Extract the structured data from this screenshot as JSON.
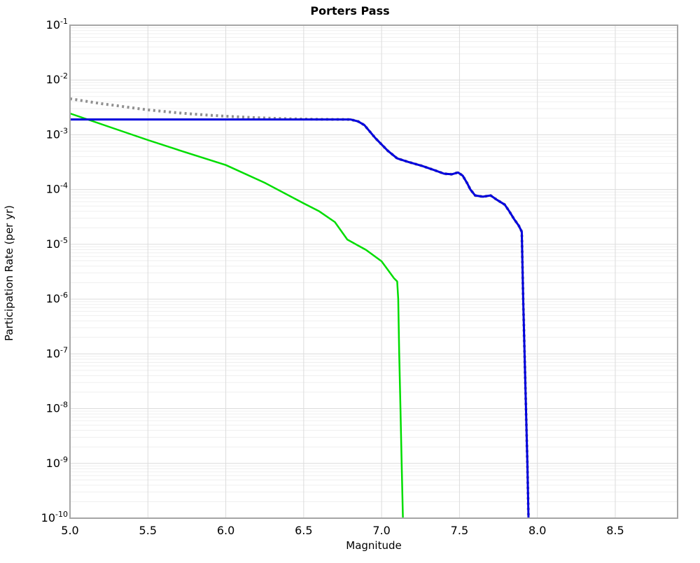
{
  "title": "Porters Pass",
  "axes": {
    "xlabel": "Magnitude",
    "ylabel": "Participation Rate (per yr)",
    "x_tick_labels": [
      "5.0",
      "5.5",
      "6.0",
      "6.5",
      "7.0",
      "7.5",
      "8.0",
      "8.5"
    ],
    "x_tick_values": [
      5.0,
      5.5,
      6.0,
      6.5,
      7.0,
      7.5,
      8.0,
      8.5
    ],
    "y_tick_exponents": [
      -1,
      -2,
      -3,
      -4,
      -5,
      -6,
      -7,
      -8,
      -9,
      -10
    ]
  },
  "colors": {
    "gray_series": "#909090",
    "green_series": "#00dd00",
    "blue_series": "#0000dd",
    "grid_major": "#dcdcdc",
    "grid_minor": "#efefef",
    "plot_border": "#a6a6a6"
  },
  "chart_data": {
    "type": "line",
    "title": "Porters Pass",
    "xlabel": "Magnitude",
    "ylabel": "Participation Rate (per yr)",
    "xlim": [
      5.0,
      8.9
    ],
    "ylim": [
      1e-10,
      0.1
    ],
    "y_scale": "log",
    "grid": true,
    "legend": "none",
    "series": [
      {
        "name": "gray-dotted",
        "color": "#909090",
        "style": "dotted",
        "width": 4,
        "points": [
          [
            5.0,
            0.00455
          ],
          [
            5.1,
            0.0041
          ],
          [
            5.2,
            0.0037
          ],
          [
            5.3,
            0.0034
          ],
          [
            5.4,
            0.0031
          ],
          [
            5.5,
            0.00285
          ],
          [
            5.6,
            0.00267
          ],
          [
            5.7,
            0.0025
          ],
          [
            5.8,
            0.00238
          ],
          [
            5.9,
            0.00227
          ],
          [
            6.0,
            0.00218
          ],
          [
            6.1,
            0.00211
          ],
          [
            6.2,
            0.00205
          ],
          [
            6.3,
            0.002
          ],
          [
            6.4,
            0.00196
          ],
          [
            6.5,
            0.00194
          ],
          [
            6.6,
            0.00192
          ],
          [
            6.7,
            0.00191
          ],
          [
            6.8,
            0.0019
          ],
          [
            6.85,
            0.00175
          ],
          [
            6.89,
            0.0015
          ],
          [
            6.96,
            0.00087
          ],
          [
            7.04,
            0.00051
          ],
          [
            7.1,
            0.00037
          ],
          [
            7.17,
            0.00032
          ],
          [
            7.26,
            0.00027
          ],
          [
            7.34,
            0.000225
          ],
          [
            7.4,
            0.000195
          ],
          [
            7.45,
            0.00019
          ],
          [
            7.49,
            0.000205
          ],
          [
            7.52,
            0.00018
          ],
          [
            7.55,
            0.00013
          ],
          [
            7.57,
            0.0001
          ],
          [
            7.6,
            7.8e-05
          ],
          [
            7.65,
            7.4e-05
          ],
          [
            7.7,
            7.8e-05
          ],
          [
            7.74,
            6.5e-05
          ],
          [
            7.79,
            5.3e-05
          ],
          [
            7.82,
            4e-05
          ],
          [
            7.85,
            2.9e-05
          ],
          [
            7.88,
            2.2e-05
          ],
          [
            7.9,
            1.7e-05
          ],
          [
            7.909,
            1e-06
          ],
          [
            7.918,
            1e-07
          ],
          [
            7.927,
            1e-08
          ],
          [
            7.936,
            1e-09
          ],
          [
            7.943,
            1e-10
          ]
        ]
      },
      {
        "name": "green-solid",
        "color": "#00dd00",
        "style": "solid",
        "width": 2.5,
        "points": [
          [
            5.0,
            0.00245
          ],
          [
            5.25,
            0.0014
          ],
          [
            5.5,
            0.0008
          ],
          [
            5.75,
            0.00047
          ],
          [
            6.0,
            0.00028
          ],
          [
            6.25,
            0.000133
          ],
          [
            6.5,
            5.6e-05
          ],
          [
            6.6,
            4e-05
          ],
          [
            6.7,
            2.55e-05
          ],
          [
            6.78,
            1.22e-05
          ],
          [
            6.9,
            7.9e-06
          ],
          [
            7.0,
            4.9e-06
          ],
          [
            7.08,
            2.4e-06
          ],
          [
            7.1,
            2.1e-06
          ],
          [
            7.107,
            1e-06
          ],
          [
            7.113,
            1e-07
          ],
          [
            7.121,
            1e-08
          ],
          [
            7.129,
            1e-09
          ],
          [
            7.137,
            1e-10
          ]
        ]
      },
      {
        "name": "blue-solid",
        "color": "#0000dd",
        "style": "solid",
        "width": 3,
        "points": [
          [
            5.0,
            0.0019
          ],
          [
            6.0,
            0.0019
          ],
          [
            6.5,
            0.0019
          ],
          [
            6.8,
            0.0019
          ],
          [
            6.85,
            0.00175
          ],
          [
            6.89,
            0.0015
          ],
          [
            6.96,
            0.00087
          ],
          [
            7.04,
            0.00051
          ],
          [
            7.1,
            0.00037
          ],
          [
            7.17,
            0.00032
          ],
          [
            7.26,
            0.00027
          ],
          [
            7.34,
            0.000225
          ],
          [
            7.4,
            0.000195
          ],
          [
            7.45,
            0.00019
          ],
          [
            7.49,
            0.000205
          ],
          [
            7.52,
            0.00018
          ],
          [
            7.55,
            0.00013
          ],
          [
            7.57,
            0.0001
          ],
          [
            7.6,
            7.8e-05
          ],
          [
            7.65,
            7.4e-05
          ],
          [
            7.7,
            7.8e-05
          ],
          [
            7.74,
            6.5e-05
          ],
          [
            7.79,
            5.3e-05
          ],
          [
            7.82,
            4e-05
          ],
          [
            7.85,
            2.9e-05
          ],
          [
            7.88,
            2.2e-05
          ],
          [
            7.9,
            1.7e-05
          ],
          [
            7.909,
            1e-06
          ],
          [
            7.918,
            1e-07
          ],
          [
            7.927,
            1e-08
          ],
          [
            7.936,
            1e-09
          ],
          [
            7.943,
            1e-10
          ]
        ]
      }
    ]
  }
}
